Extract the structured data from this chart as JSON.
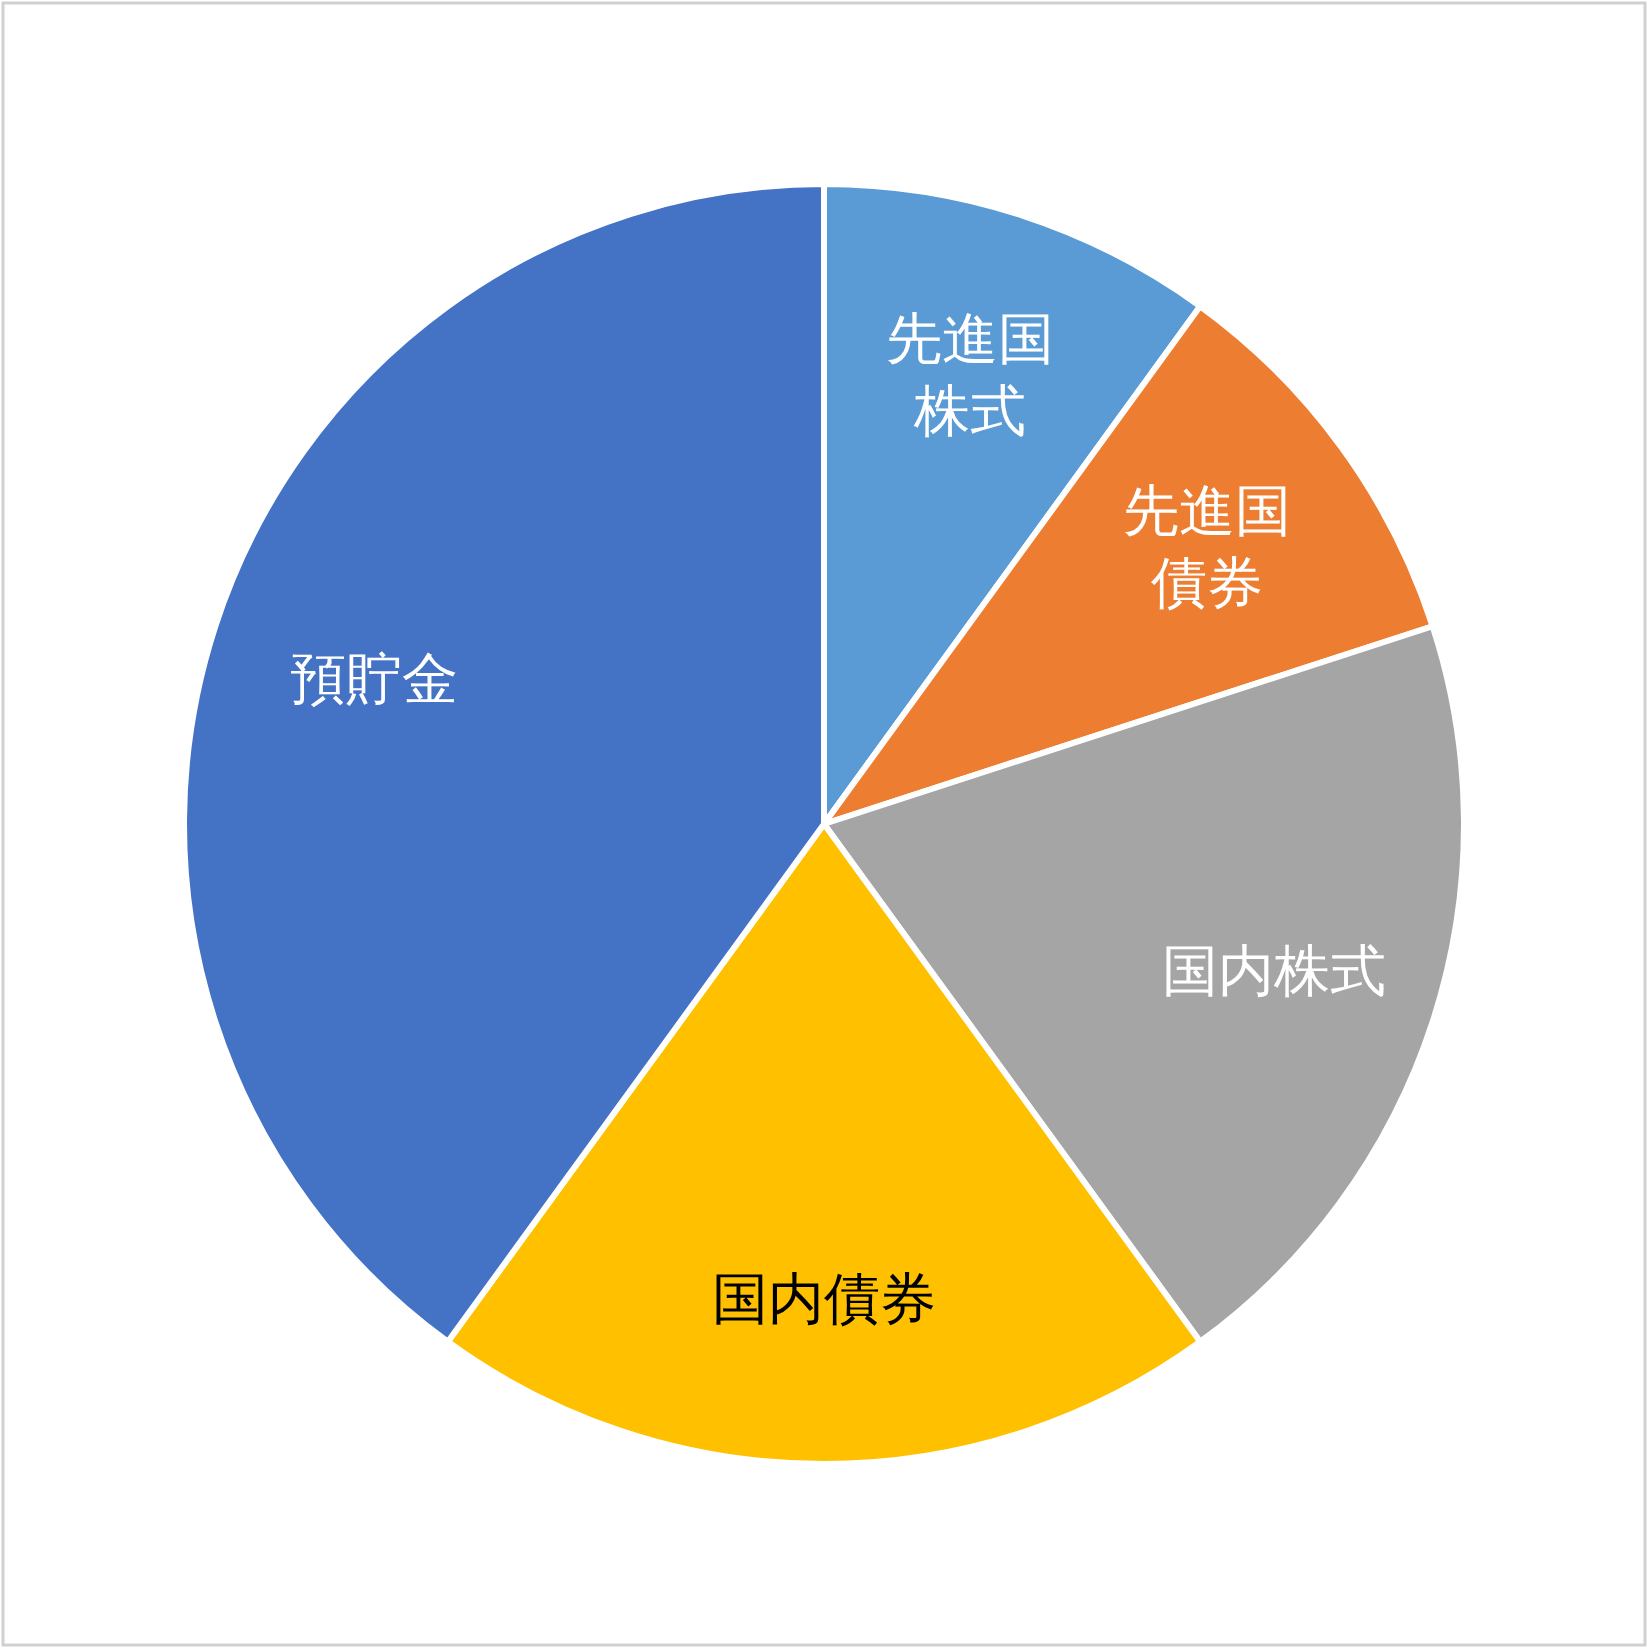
{
  "chart_data": {
    "type": "pie",
    "categories": [
      "先進国株式",
      "先進国債券",
      "国内株式",
      "国内債券",
      "預貯金"
    ],
    "values": [
      10,
      10,
      20,
      20,
      40
    ],
    "colors": [
      "#5b9bd5",
      "#ed7d31",
      "#a5a5a5",
      "#ffc000",
      "#4472c4"
    ]
  }
}
